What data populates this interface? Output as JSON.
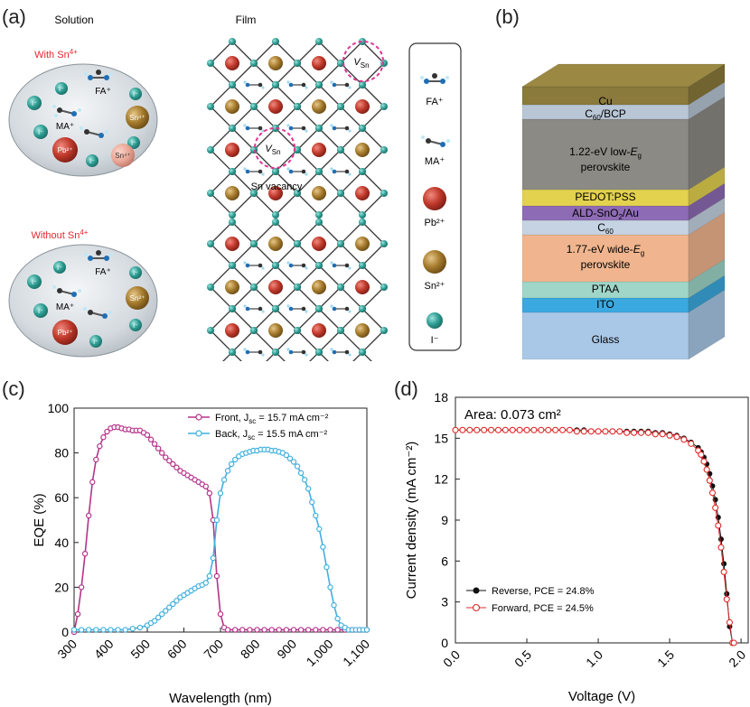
{
  "panels": {
    "a": {
      "label": "(a)",
      "solution_header": "Solution",
      "film_header": "Film",
      "with_label": "With Sn",
      "with_sup": "4+",
      "without_label": "Without Sn",
      "without_sup": "4+",
      "ions": {
        "iodide": "I⁻",
        "fa": "FA⁺",
        "ma": "MA⁺",
        "sn4": "Sn⁴⁺",
        "pb2": "Pb²⁺",
        "sn2": "Sn²⁺"
      },
      "vacancy_symbol": "V",
      "vacancy_sub": "Sn",
      "sn_vacancy_label": "Sn vacancy",
      "legend": {
        "fa": "FA⁺",
        "ma": "MA⁺",
        "pb": "Pb²⁺",
        "sn": "Sn²⁺",
        "iodide": "I⁻"
      },
      "colors": {
        "with_red": "#e8262b",
        "teal": "#2f9e94",
        "pb_red": "#c0392b",
        "sn_gold": "#a57a2c"
      }
    },
    "b": {
      "label": "(b)",
      "layers": [
        {
          "name": "Cu",
          "color": "#8a7a3c"
        },
        {
          "name": "C60/BCP",
          "color": "#b8c6d6"
        },
        {
          "name": "1.22-eV low-Eg perovskite",
          "color": "#8c8a84"
        },
        {
          "name": "PEDOT:PSS",
          "color": "#e3d24e"
        },
        {
          "name": "ALD-SnO2/Au",
          "color": "#8e6bb5"
        },
        {
          "name": "C60",
          "color": "#c5d3e3"
        },
        {
          "name": "1.77-eV wide-Eg perovskite",
          "color": "#f0b58e"
        },
        {
          "name": "PTAA",
          "color": "#9fd6c8"
        },
        {
          "name": "ITO",
          "color": "#3aa9df"
        },
        {
          "name": "Glass",
          "color": "#a9c8e8"
        }
      ],
      "text": {
        "cu": "Cu",
        "c60bcp_pre": "C",
        "c60bcp_sub": "60",
        "c60bcp_post": "/BCP",
        "low1_pre": "1.22-eV low-",
        "low1_E": "E",
        "low1_sub": "g",
        "low2": "perovskite",
        "pedot": "PEDOT:PSS",
        "ald_pre": "ALD-SnO",
        "ald_sub": "2",
        "ald_post": "/Au",
        "c60_pre": "C",
        "c60_sub": "60",
        "wide1_pre": "1.77-eV wide-",
        "wide1_E": "E",
        "wide1_sub": "g",
        "wide2": "perovskite",
        "ptaa": "PTAA",
        "ito": "ITO",
        "glass": "Glass"
      }
    },
    "c": {
      "label": "(c)"
    },
    "d": {
      "label": "(d)"
    }
  },
  "chart_data": [
    {
      "id": "c",
      "type": "line",
      "xlabel": "Wavelength (nm)",
      "ylabel": "EQE (%)",
      "xlim": [
        300,
        1100
      ],
      "ylim": [
        0,
        100
      ],
      "xticks": [
        300,
        400,
        500,
        600,
        700,
        800,
        900,
        1000,
        1100
      ],
      "xtick_labels": [
        "300",
        "400",
        "500",
        "600",
        "700",
        "800",
        "900",
        "1,000",
        "1,100"
      ],
      "yticks": [
        0,
        20,
        40,
        60,
        80,
        100
      ],
      "legend_position": "top-right",
      "series": [
        {
          "name": "Front, J",
          "name_sub": "sc",
          "name_post": " = 15.7 mA cm⁻²",
          "color": "#b5338a",
          "x": [
            300,
            310,
            320,
            330,
            340,
            350,
            360,
            370,
            380,
            390,
            400,
            410,
            420,
            430,
            440,
            450,
            460,
            470,
            480,
            490,
            500,
            510,
            520,
            530,
            540,
            550,
            560,
            570,
            580,
            590,
            600,
            610,
            620,
            630,
            640,
            650,
            660,
            670,
            680,
            690,
            700,
            710,
            720,
            740,
            760,
            780,
            800,
            820,
            840,
            860,
            880,
            900,
            920,
            940,
            960,
            980,
            1000,
            1020,
            1040,
            1060,
            1080,
            1100
          ],
          "y": [
            0,
            8,
            20,
            35,
            52,
            67,
            77,
            83,
            87,
            89.5,
            91,
            91.5,
            91.5,
            91,
            90.5,
            90.5,
            90,
            90,
            90,
            89,
            88,
            86,
            84,
            82,
            80,
            78,
            76.5,
            75,
            73.5,
            72,
            71,
            70,
            69,
            68,
            67,
            66,
            65,
            62,
            50,
            25,
            8,
            2,
            1,
            1,
            1,
            1,
            1,
            1,
            1,
            1,
            1,
            1,
            1,
            1,
            1,
            1,
            1,
            1,
            1,
            1,
            1,
            1
          ]
        },
        {
          "name": "Back, J",
          "name_sub": "sc",
          "name_post": " = 15.5 mA cm⁻²",
          "color": "#41b0df",
          "x": [
            300,
            320,
            340,
            360,
            380,
            400,
            420,
            440,
            460,
            480,
            500,
            510,
            520,
            530,
            540,
            550,
            560,
            570,
            580,
            590,
            600,
            610,
            620,
            630,
            640,
            650,
            660,
            670,
            680,
            690,
            700,
            710,
            720,
            730,
            740,
            750,
            760,
            770,
            780,
            790,
            800,
            810,
            820,
            830,
            840,
            850,
            860,
            870,
            880,
            890,
            900,
            910,
            920,
            930,
            940,
            950,
            960,
            970,
            980,
            990,
            1000,
            1010,
            1020,
            1030,
            1040,
            1050,
            1060,
            1070,
            1080,
            1090,
            1100
          ],
          "y": [
            1,
            1,
            1,
            1,
            1,
            1,
            1,
            1,
            1.5,
            2,
            3,
            4,
            5,
            6.5,
            8,
            9.5,
            11,
            12.5,
            14,
            15.5,
            16.5,
            17.5,
            18.5,
            19.5,
            20.5,
            21,
            22,
            25,
            33,
            50,
            62,
            68,
            72,
            75,
            77,
            78.5,
            79.5,
            80,
            80.5,
            81,
            81,
            81.5,
            81.5,
            81.5,
            81,
            81,
            80.5,
            80,
            79,
            77.5,
            76,
            74,
            71,
            68,
            64,
            58,
            52,
            46,
            38,
            29,
            20,
            12,
            6,
            3,
            2,
            1,
            1,
            1,
            1,
            1,
            1
          ]
        }
      ]
    },
    {
      "id": "d",
      "type": "line",
      "xlabel": "Voltage (V)",
      "ylabel": "Current density (mA cm⁻²)",
      "xlim": [
        0,
        2.05
      ],
      "ylim": [
        0,
        18
      ],
      "xticks": [
        0,
        0.5,
        1.0,
        1.5,
        2.0
      ],
      "xtick_labels": [
        "0.0",
        "0.5",
        "1.0",
        "1.5",
        "2.0"
      ],
      "yticks": [
        0,
        3,
        6,
        9,
        12,
        15,
        18
      ],
      "annotation": "Area: 0.073 cm²",
      "legend_position": "bottom-left",
      "series": [
        {
          "name": "Reverse, PCE = 24.8%",
          "color": "#111111",
          "marker": "filled-circle",
          "x": [
            0,
            0.05,
            0.1,
            0.15,
            0.2,
            0.25,
            0.3,
            0.35,
            0.4,
            0.45,
            0.5,
            0.55,
            0.6,
            0.65,
            0.7,
            0.75,
            0.8,
            0.85,
            0.9,
            0.95,
            1.0,
            1.05,
            1.1,
            1.15,
            1.2,
            1.25,
            1.3,
            1.35,
            1.4,
            1.45,
            1.5,
            1.55,
            1.6,
            1.65,
            1.7,
            1.72,
            1.74,
            1.76,
            1.78,
            1.8,
            1.82,
            1.84,
            1.86,
            1.88,
            1.9,
            1.92,
            1.94,
            1.95
          ],
          "y": [
            15.6,
            15.6,
            15.6,
            15.6,
            15.6,
            15.6,
            15.6,
            15.6,
            15.6,
            15.6,
            15.6,
            15.6,
            15.6,
            15.6,
            15.6,
            15.6,
            15.6,
            15.6,
            15.6,
            15.5,
            15.5,
            15.5,
            15.5,
            15.5,
            15.5,
            15.5,
            15.5,
            15.5,
            15.4,
            15.4,
            15.3,
            15.2,
            15.0,
            14.7,
            14.3,
            14.0,
            13.6,
            13.1,
            12.4,
            11.5,
            10.5,
            9.2,
            7.6,
            5.8,
            3.6,
            1.2,
            0,
            0
          ]
        },
        {
          "name": "Forward, PCE = 24.5%",
          "color": "#e02a2a",
          "marker": "open-circle",
          "x": [
            0,
            0.05,
            0.1,
            0.15,
            0.2,
            0.25,
            0.3,
            0.35,
            0.4,
            0.45,
            0.5,
            0.55,
            0.6,
            0.65,
            0.7,
            0.75,
            0.8,
            0.85,
            0.9,
            0.95,
            1.0,
            1.05,
            1.1,
            1.15,
            1.2,
            1.25,
            1.3,
            1.35,
            1.4,
            1.45,
            1.5,
            1.55,
            1.6,
            1.65,
            1.7,
            1.72,
            1.74,
            1.76,
            1.78,
            1.8,
            1.82,
            1.84,
            1.86,
            1.88,
            1.9,
            1.92,
            1.94,
            1.95
          ],
          "y": [
            15.6,
            15.6,
            15.6,
            15.6,
            15.6,
            15.6,
            15.6,
            15.6,
            15.6,
            15.6,
            15.6,
            15.6,
            15.6,
            15.6,
            15.6,
            15.6,
            15.6,
            15.5,
            15.5,
            15.5,
            15.5,
            15.5,
            15.5,
            15.5,
            15.4,
            15.4,
            15.4,
            15.4,
            15.3,
            15.3,
            15.2,
            15.1,
            14.9,
            14.6,
            14.1,
            13.8,
            13.3,
            12.7,
            11.9,
            11.0,
            9.9,
            8.6,
            7.0,
            5.2,
            3.2,
            1.5,
            0,
            0
          ]
        }
      ]
    }
  ]
}
